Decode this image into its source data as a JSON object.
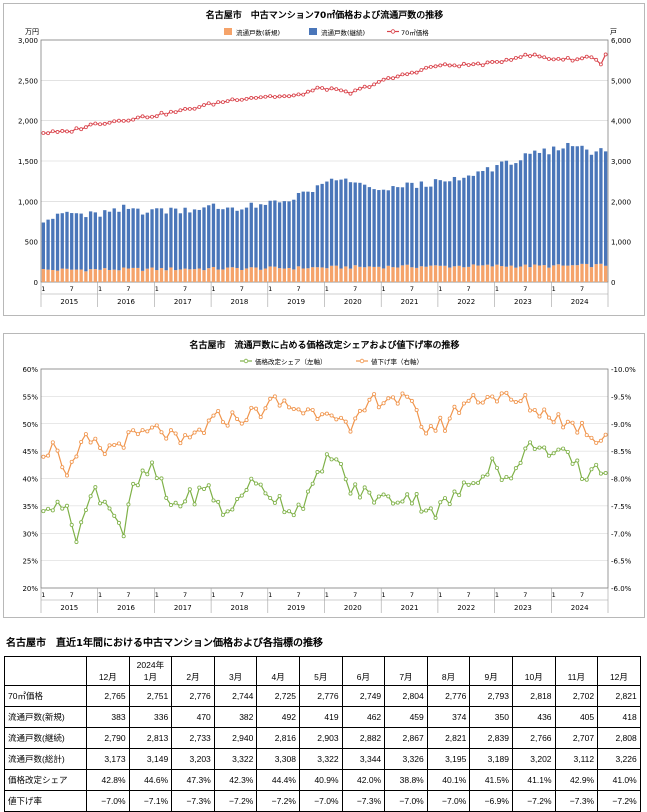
{
  "colors": {
    "bar_new": "#f5a36a",
    "bar_cont": "#4a76b9",
    "price_line": "#d9424a",
    "share_line": "#7fb148",
    "cut_line": "#f0954d",
    "grid": "#d0d0d0"
  },
  "chart_data": [
    {
      "type": "bar+line",
      "title": "名古屋市　中古マンション70㎡価格および流通戸数の推移",
      "y_left_unit": "万円",
      "y_right_unit": "戸",
      "y_left_ticks": [
        "0",
        "500",
        "1,000",
        "1,500",
        "2,000",
        "2,500",
        "3,000"
      ],
      "y_right_ticks": [
        "0",
        "1,000",
        "2,000",
        "3,000",
        "4,000",
        "5,000",
        "6,000"
      ],
      "ylim_left": [
        0,
        3000
      ],
      "ylim_right": [
        0,
        6000
      ],
      "x_month_ticks": [
        "1",
        "7",
        "1",
        "7",
        "1",
        "7",
        "1",
        "7",
        "1",
        "7",
        "1",
        "7",
        "1",
        "7",
        "1",
        "7",
        "1",
        "7",
        "1",
        "7"
      ],
      "x_years": [
        "2015",
        "2016",
        "2017",
        "2018",
        "2019",
        "2020",
        "2021",
        "2022",
        "2023",
        "2024"
      ],
      "legend": [
        "流通戸数(新規)",
        "流通戸数(継続)",
        "70㎡価格"
      ],
      "legend_position": "top-center",
      "series": [
        {
          "name": "流通戸数(新規)",
          "axis": "right",
          "points": [
            [
              1,
              300
            ],
            [
              12,
              310
            ],
            [
              24,
              320
            ],
            [
              36,
              330
            ],
            [
              48,
              340
            ],
            [
              60,
              360
            ],
            [
              72,
              380
            ],
            [
              84,
              390
            ],
            [
              96,
              400
            ],
            [
              108,
              395
            ],
            [
              120,
              418
            ]
          ]
        },
        {
          "name": "流通戸数(継続)",
          "axis": "right",
          "points": [
            [
              1,
              1230
            ],
            [
              6,
              1400
            ],
            [
              12,
              1350
            ],
            [
              18,
              1480
            ],
            [
              24,
              1460
            ],
            [
              30,
              1480
            ],
            [
              36,
              1520
            ],
            [
              42,
              1490
            ],
            [
              48,
              1550
            ],
            [
              54,
              1750
            ],
            [
              60,
              2000
            ],
            [
              62,
              2160
            ],
            [
              66,
              2140
            ],
            [
              72,
              1850
            ],
            [
              78,
              2020
            ],
            [
              84,
              2050
            ],
            [
              90,
              2170
            ],
            [
              96,
              2440
            ],
            [
              102,
              2660
            ],
            [
              108,
              2840
            ],
            [
              112,
              2980
            ],
            [
              114,
              2980
            ],
            [
              118,
              2820
            ],
            [
              120,
              2808
            ]
          ]
        },
        {
          "name": "70㎡価格",
          "axis": "left",
          "points": [
            [
              1,
              1850
            ],
            [
              6,
              1860
            ],
            [
              12,
              1960
            ],
            [
              24,
              2060
            ],
            [
              30,
              2120
            ],
            [
              36,
              2200
            ],
            [
              42,
              2270
            ],
            [
              48,
              2300
            ],
            [
              54,
              2300
            ],
            [
              60,
              2410
            ],
            [
              66,
              2340
            ],
            [
              72,
              2480
            ],
            [
              78,
              2580
            ],
            [
              84,
              2680
            ],
            [
              90,
              2690
            ],
            [
              96,
              2710
            ],
            [
              102,
              2800
            ],
            [
              105,
              2810
            ],
            [
              108,
              2770
            ],
            [
              114,
              2760
            ],
            [
              117,
              2800
            ],
            [
              119,
              2702
            ],
            [
              120,
              2821
            ]
          ]
        }
      ]
    },
    {
      "type": "line",
      "title": "名古屋市　流通戸数に占める価格改定シェアおよび値下げ率の推移",
      "y_left_ticks": [
        "20%",
        "25%",
        "30%",
        "35%",
        "40%",
        "45%",
        "50%",
        "55%",
        "60%"
      ],
      "y_right_ticks": [
        "-6.0%",
        "-6.5%",
        "-7.0%",
        "-7.5%",
        "-8.0%",
        "-8.5%",
        "-9.0%",
        "-9.5%",
        "-10.0%"
      ],
      "ylim_left": [
        20,
        60
      ],
      "ylim_right": [
        -10.0,
        -6.0
      ],
      "x_month_ticks": [
        "1",
        "7",
        "1",
        "7",
        "1",
        "7",
        "1",
        "7",
        "1",
        "7",
        "1",
        "7",
        "1",
        "7",
        "1",
        "7",
        "1",
        "7",
        "1",
        "7"
      ],
      "x_years": [
        "2015",
        "2016",
        "2017",
        "2018",
        "2019",
        "2020",
        "2021",
        "2022",
        "2023",
        "2024"
      ],
      "legend": [
        "価格改定シェア（左軸）",
        "値下げ率（右軸）"
      ],
      "legend_position": "top-center",
      "series": [
        {
          "name": "価格改定シェア（左軸）",
          "axis": "left",
          "points": [
            [
              1,
              33
            ],
            [
              4,
              37
            ],
            [
              8,
              30
            ],
            [
              12,
              38
            ],
            [
              16,
              34
            ],
            [
              18,
              30
            ],
            [
              20,
              38
            ],
            [
              24,
              42
            ],
            [
              28,
              35
            ],
            [
              36,
              38
            ],
            [
              40,
              33
            ],
            [
              44,
              39
            ],
            [
              48,
              38
            ],
            [
              54,
              34
            ],
            [
              58,
              38
            ],
            [
              62,
              45
            ],
            [
              66,
              38
            ],
            [
              70,
              37
            ],
            [
              74,
              36
            ],
            [
              78,
              37
            ],
            [
              84,
              34
            ],
            [
              90,
              38
            ],
            [
              96,
              43
            ],
            [
              100,
              39
            ],
            [
              102,
              44
            ],
            [
              106,
              47
            ],
            [
              108,
              44
            ],
            [
              112,
              44
            ],
            [
              116,
              40
            ],
            [
              118,
              42.9
            ],
            [
              120,
              41.0
            ]
          ]
        },
        {
          "name": "値下げ率（右軸）",
          "axis": "right",
          "points": [
            [
              1,
              -7.5
            ],
            [
              4,
              -7.4
            ],
            [
              6,
              -8.0
            ],
            [
              10,
              -7.3
            ],
            [
              14,
              -7.5
            ],
            [
              18,
              -7.3
            ],
            [
              22,
              -7.2
            ],
            [
              26,
              -7.1
            ],
            [
              30,
              -7.4
            ],
            [
              38,
              -6.9
            ],
            [
              42,
              -6.9
            ],
            [
              46,
              -6.8
            ],
            [
              50,
              -6.6
            ],
            [
              54,
              -6.7
            ],
            [
              58,
              -6.8
            ],
            [
              62,
              -6.7
            ],
            [
              66,
              -7.2
            ],
            [
              70,
              -6.6
            ],
            [
              74,
              -6.5
            ],
            [
              78,
              -6.6
            ],
            [
              82,
              -7.1
            ],
            [
              86,
              -7.0
            ],
            [
              90,
              -6.6
            ],
            [
              94,
              -6.5
            ],
            [
              98,
              -6.5
            ],
            [
              100,
              -6.6
            ],
            [
              103,
              -6.6
            ],
            [
              106,
              -6.8
            ],
            [
              108,
              -6.8
            ],
            [
              112,
              -7.0
            ],
            [
              116,
              -7.1
            ],
            [
              118,
              -7.3
            ],
            [
              120,
              -7.2
            ]
          ]
        }
      ]
    },
    {
      "type": "table",
      "title": "名古屋市　直近1年間における中古マンション価格および各指標の推移",
      "header_year": "2024年",
      "columns": [
        "12月",
        "1月",
        "2月",
        "3月",
        "4月",
        "5月",
        "6月",
        "7月",
        "8月",
        "9月",
        "10月",
        "11月",
        "12月"
      ],
      "rows": [
        {
          "label": "70㎡価格",
          "values": [
            "2,765",
            "2,751",
            "2,776",
            "2,744",
            "2,725",
            "2,776",
            "2,749",
            "2,804",
            "2,776",
            "2,793",
            "2,818",
            "2,702",
            "2,821"
          ]
        },
        {
          "label": "流通戸数(新規)",
          "values": [
            "383",
            "336",
            "470",
            "382",
            "492",
            "419",
            "462",
            "459",
            "374",
            "350",
            "436",
            "405",
            "418"
          ]
        },
        {
          "label": "流通戸数(継続)",
          "values": [
            "2,790",
            "2,813",
            "2,733",
            "2,940",
            "2,816",
            "2,903",
            "2,882",
            "2,867",
            "2,821",
            "2,839",
            "2,766",
            "2,707",
            "2,808"
          ]
        },
        {
          "label": "流通戸数(総計)",
          "values": [
            "3,173",
            "3,149",
            "3,203",
            "3,322",
            "3,308",
            "3,322",
            "3,344",
            "3,326",
            "3,195",
            "3,189",
            "3,202",
            "3,112",
            "3,226"
          ]
        },
        {
          "label": "価格改定シェア",
          "values": [
            "42.8%",
            "44.6%",
            "47.3%",
            "42.3%",
            "44.4%",
            "40.9%",
            "42.0%",
            "38.8%",
            "40.1%",
            "41.5%",
            "41.1%",
            "42.9%",
            "41.0%"
          ]
        },
        {
          "label": "値下げ率",
          "values": [
            "−7.0%",
            "−7.1%",
            "−7.3%",
            "−7.2%",
            "−7.2%",
            "−7.0%",
            "−7.3%",
            "−7.0%",
            "−7.0%",
            "−6.9%",
            "−7.2%",
            "−7.3%",
            "−7.2%"
          ]
        }
      ]
    }
  ]
}
